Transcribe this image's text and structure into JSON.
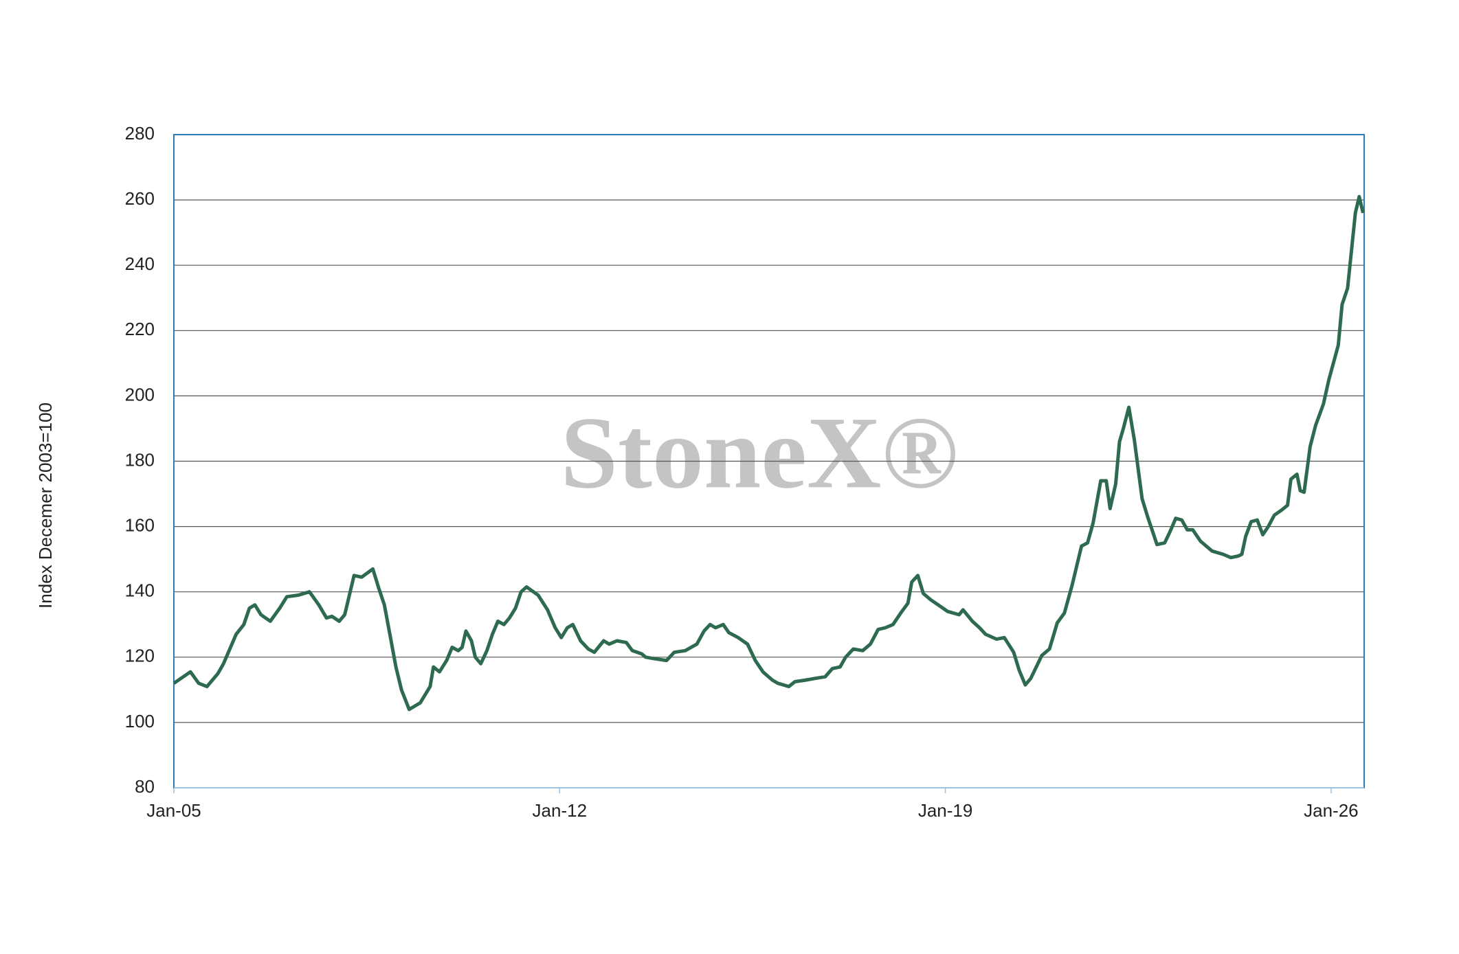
{
  "chart_data": {
    "type": "line",
    "y_label": "Index Decemer 2003=100",
    "watermark": "StoneX®",
    "color": "#2d6a4f",
    "x": [
      2005.0,
      2005.3,
      2005.45,
      2005.6,
      2005.8,
      2005.9,
      2006.13,
      2006.27,
      2006.37,
      2006.47,
      2006.58,
      2006.75,
      2006.92,
      2007.05,
      2007.26,
      2007.46,
      2007.63,
      2007.77,
      2007.87,
      2008.0,
      2008.1,
      2008.27,
      2008.41,
      2008.61,
      2008.72,
      2008.82,
      2008.92,
      2009.03,
      2009.13,
      2009.27,
      2009.47,
      2009.65,
      2009.71,
      2009.82,
      2009.95,
      2010.05,
      2010.16,
      2010.23,
      2010.3,
      2010.4,
      2010.47,
      2010.57,
      2010.68,
      2010.78,
      2010.88,
      2010.99,
      2011.09,
      2011.2,
      2011.3,
      2011.4,
      2011.61,
      2011.78,
      2011.92,
      2012.03,
      2012.14,
      2012.24,
      2012.38,
      2012.52,
      2012.63,
      2012.8,
      2012.9,
      2013.04,
      2013.21,
      2013.32,
      2013.49,
      2013.56,
      2013.73,
      2013.94,
      2014.08,
      2014.28,
      2014.49,
      2014.62,
      2014.73,
      2014.83,
      2014.97,
      2015.07,
      2015.24,
      2015.41,
      2015.55,
      2015.69,
      2015.86,
      2015.96,
      2016.16,
      2016.27,
      2016.47,
      2016.64,
      2016.82,
      2016.95,
      2017.09,
      2017.19,
      2017.33,
      2017.5,
      2017.64,
      2017.78,
      2017.91,
      2018.05,
      2018.19,
      2018.32,
      2018.39,
      2018.5,
      2018.6,
      2018.74,
      2018.87,
      2019.04,
      2019.25,
      2019.32,
      2019.49,
      2019.62,
      2019.73,
      2019.93,
      2020.07,
      2020.24,
      2020.34,
      2020.45,
      2020.55,
      2020.75,
      2020.89,
      2021.03,
      2021.16,
      2021.3,
      2021.47,
      2021.58,
      2021.68,
      2021.82,
      2021.92,
      2021.99,
      2022.09,
      2022.16,
      2022.23,
      2022.33,
      2022.43,
      2022.57,
      2022.67,
      2022.77,
      2022.84,
      2022.98,
      2023.08,
      2023.18,
      2023.29,
      2023.39,
      2023.49,
      2023.63,
      2023.84,
      2024.04,
      2024.18,
      2024.32,
      2024.38,
      2024.45,
      2024.55,
      2024.66,
      2024.76,
      2024.86,
      2024.97,
      2025.1,
      2025.21,
      2025.27,
      2025.38,
      2025.44,
      2025.51,
      2025.62,
      2025.72,
      2025.86,
      2025.96,
      2026.13,
      2026.2,
      2026.3,
      2026.44,
      2026.51,
      2026.58
    ],
    "values": [
      112,
      115.5,
      112,
      111,
      115,
      118,
      127,
      130,
      135,
      136,
      133,
      131,
      135,
      138.5,
      139,
      140,
      136,
      132,
      132.5,
      131,
      133,
      145,
      144.5,
      147,
      141,
      136,
      127,
      117,
      110,
      104,
      106,
      111,
      117,
      115.5,
      119,
      123,
      122,
      123,
      128,
      125,
      120,
      118,
      122,
      127,
      131,
      130,
      132,
      135,
      140,
      141.5,
      139,
      134.5,
      129,
      126,
      129,
      130,
      125,
      122.5,
      121.5,
      125,
      124,
      125,
      124.5,
      122,
      121,
      120,
      119.5,
      119,
      121.5,
      122,
      124,
      128,
      130,
      129,
      130,
      127.5,
      126,
      124,
      119,
      115.5,
      113,
      112,
      111,
      112.5,
      113,
      113.5,
      114,
      116.5,
      117,
      120,
      122.5,
      122,
      124,
      128.5,
      129,
      130,
      133.5,
      136.5,
      143,
      145,
      139.5,
      137.5,
      136,
      134,
      133,
      134.5,
      131,
      129,
      127,
      125.5,
      126,
      121.5,
      116,
      111.5,
      113.5,
      120.5,
      122.5,
      130.5,
      133.5,
      142,
      154,
      155,
      161,
      174,
      174,
      165.5,
      173,
      186,
      190,
      196.5,
      186.5,
      168.5,
      163,
      158,
      154.5,
      155,
      158.5,
      162.5,
      162,
      159,
      159,
      155.5,
      152.5,
      151.5,
      150.5,
      151,
      151.5,
      157,
      161.5,
      162,
      157.5,
      160,
      163.5,
      165,
      166.5,
      174.5,
      176,
      171,
      170.5,
      184.5,
      191,
      197.5,
      205,
      215.5,
      228,
      233,
      256,
      261,
      256
    ],
    "xlim": [
      2005,
      2026.6
    ],
    "xticks": [
      {
        "value": 2005,
        "label": "Jan-05"
      },
      {
        "value": 2012,
        "label": "Jan-12"
      },
      {
        "value": 2019,
        "label": "Jan-19"
      },
      {
        "value": 2026,
        "label": "Jan-26"
      }
    ],
    "ylim": [
      80,
      280
    ],
    "yticks": [
      80,
      100,
      120,
      140,
      160,
      180,
      200,
      220,
      240,
      260,
      280
    ],
    "grid": true
  }
}
